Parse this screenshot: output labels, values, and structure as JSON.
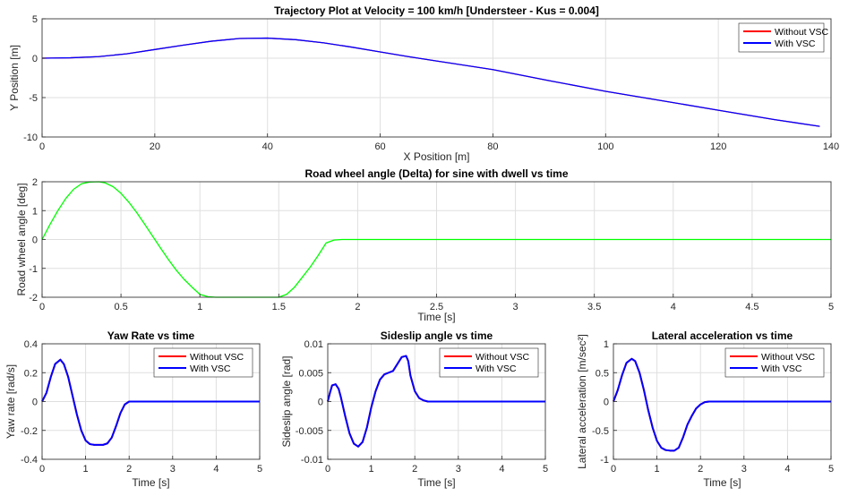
{
  "chart_data": [
    {
      "type": "line",
      "title": "Trajectory Plot at Velocity = 100 km/h [Understeer - Kus = 0.004]",
      "xlabel": "X Position [m]",
      "ylabel": "Y Position [m]",
      "xlim": [
        0,
        140
      ],
      "ylim": [
        -10,
        5
      ],
      "xticks": [
        0,
        20,
        40,
        60,
        80,
        100,
        120,
        140
      ],
      "yticks": [
        -10,
        -5,
        0,
        5
      ],
      "grid": true,
      "legend": "top-right",
      "series": [
        {
          "name": "Without VSC",
          "color": "#ff0000",
          "x": [
            0,
            5,
            10,
            15,
            20,
            25,
            30,
            35,
            40,
            45,
            50,
            55,
            60,
            65,
            70,
            80,
            90,
            100,
            110,
            120,
            130,
            138
          ],
          "y": [
            0,
            0.05,
            0.2,
            0.55,
            1.1,
            1.65,
            2.15,
            2.5,
            2.55,
            2.35,
            1.95,
            1.4,
            0.8,
            0.2,
            -0.35,
            -1.45,
            -2.85,
            -4.2,
            -5.4,
            -6.6,
            -7.8,
            -8.65
          ]
        },
        {
          "name": "With VSC",
          "color": "#0000ff",
          "x": [
            0,
            5,
            10,
            15,
            20,
            25,
            30,
            35,
            40,
            45,
            50,
            55,
            60,
            65,
            70,
            80,
            90,
            100,
            110,
            120,
            130,
            138
          ],
          "y": [
            0,
            0.05,
            0.2,
            0.55,
            1.1,
            1.65,
            2.15,
            2.5,
            2.55,
            2.35,
            1.95,
            1.4,
            0.8,
            0.2,
            -0.35,
            -1.45,
            -2.85,
            -4.2,
            -5.4,
            -6.6,
            -7.8,
            -8.65
          ]
        }
      ]
    },
    {
      "type": "line",
      "title": "Road wheel angle (Delta) for sine with dwell vs time",
      "xlabel": "Time [s]",
      "ylabel": "Road wheel angle [deg]",
      "xlim": [
        0,
        5
      ],
      "ylim": [
        -2,
        2
      ],
      "xticks": [
        0,
        0.5,
        1,
        1.5,
        2,
        2.5,
        3,
        3.5,
        4,
        4.5,
        5
      ],
      "yticks": [
        -2,
        -1,
        0,
        1,
        2
      ],
      "grid": true,
      "series": [
        {
          "color": "#00ff00",
          "x": [
            0,
            0.05,
            0.1,
            0.15,
            0.2,
            0.25,
            0.3,
            0.36,
            0.4,
            0.45,
            0.5,
            0.55,
            0.6,
            0.65,
            0.7,
            0.75,
            0.8,
            0.85,
            0.9,
            0.95,
            1.0,
            1.05,
            1.1,
            1.5,
            1.55,
            1.6,
            1.65,
            1.7,
            1.75,
            1.8,
            1.85,
            1.9,
            5
          ],
          "y": [
            0,
            0.52,
            1.0,
            1.42,
            1.74,
            1.93,
            1.99,
            2.0,
            1.96,
            1.83,
            1.6,
            1.29,
            0.93,
            0.53,
            0.12,
            -0.29,
            -0.69,
            -1.06,
            -1.38,
            -1.65,
            -1.9,
            -1.98,
            -2.0,
            -2.0,
            -1.9,
            -1.65,
            -1.3,
            -0.95,
            -0.55,
            -0.12,
            -0.02,
            0,
            0
          ]
        }
      ]
    },
    {
      "type": "line",
      "title": "Yaw Rate vs time",
      "xlabel": "Time [s]",
      "ylabel": "Yaw rate [rad/s]",
      "xlim": [
        0,
        5
      ],
      "ylim": [
        -0.4,
        0.4
      ],
      "xticks": [
        0,
        1,
        2,
        3,
        4,
        5
      ],
      "yticks": [
        -0.4,
        -0.2,
        0,
        0.2,
        0.4
      ],
      "grid": true,
      "legend": "top-right",
      "series": [
        {
          "name": "Without VSC",
          "color": "#ff0000",
          "x": [
            0,
            0.1,
            0.2,
            0.3,
            0.42,
            0.5,
            0.6,
            0.7,
            0.8,
            0.9,
            1.0,
            1.1,
            1.2,
            1.4,
            1.5,
            1.6,
            1.7,
            1.8,
            1.9,
            2.0,
            2.1,
            2.5,
            5
          ],
          "y": [
            0,
            0.06,
            0.17,
            0.26,
            0.29,
            0.26,
            0.17,
            0.04,
            -0.09,
            -0.2,
            -0.27,
            -0.295,
            -0.3,
            -0.3,
            -0.29,
            -0.25,
            -0.17,
            -0.08,
            -0.02,
            0,
            0,
            0,
            0
          ]
        },
        {
          "name": "With VSC",
          "color": "#0000ff",
          "x": [
            0,
            0.1,
            0.2,
            0.3,
            0.42,
            0.5,
            0.6,
            0.7,
            0.8,
            0.9,
            1.0,
            1.1,
            1.2,
            1.4,
            1.5,
            1.6,
            1.7,
            1.8,
            1.9,
            2.0,
            2.1,
            2.5,
            5
          ],
          "y": [
            0,
            0.06,
            0.17,
            0.26,
            0.29,
            0.26,
            0.17,
            0.04,
            -0.09,
            -0.2,
            -0.27,
            -0.295,
            -0.3,
            -0.3,
            -0.29,
            -0.25,
            -0.17,
            -0.08,
            -0.02,
            0,
            0,
            0,
            0
          ]
        }
      ]
    },
    {
      "type": "line",
      "title": "Sideslip angle vs time",
      "xlabel": "Time [s]",
      "ylabel": "Sideslip angle [rad]",
      "xlim": [
        0,
        5
      ],
      "ylim": [
        -0.01,
        0.01
      ],
      "xticks": [
        0,
        1,
        2,
        3,
        4,
        5
      ],
      "yticks": [
        -0.01,
        -0.005,
        0,
        0.005,
        0.01
      ],
      "ytickLabels": [
        "-0.01",
        "-0.005",
        "0",
        "0.005",
        "0.01"
      ],
      "grid": true,
      "legend": "top-right",
      "series": [
        {
          "name": "Without VSC",
          "color": "#ff0000",
          "x": [
            0,
            0.05,
            0.1,
            0.18,
            0.25,
            0.3,
            0.4,
            0.5,
            0.6,
            0.7,
            0.8,
            0.9,
            1.0,
            1.1,
            1.2,
            1.3,
            1.4,
            1.5,
            1.6,
            1.7,
            1.8,
            1.85,
            1.9,
            2.0,
            2.1,
            2.2,
            2.3,
            2.5,
            5
          ],
          "y": [
            0,
            0.0015,
            0.0028,
            0.003,
            0.0022,
            0.0008,
            -0.0025,
            -0.0055,
            -0.0073,
            -0.0078,
            -0.007,
            -0.0045,
            -0.001,
            0.0018,
            0.0038,
            0.0047,
            0.005,
            0.0053,
            0.0065,
            0.0077,
            0.0079,
            0.007,
            0.0045,
            0.0018,
            0.0006,
            0.0002,
            0,
            0,
            0
          ]
        },
        {
          "name": "With VSC",
          "color": "#0000ff",
          "x": [
            0,
            0.05,
            0.1,
            0.18,
            0.25,
            0.3,
            0.4,
            0.5,
            0.6,
            0.7,
            0.8,
            0.9,
            1.0,
            1.1,
            1.2,
            1.3,
            1.4,
            1.5,
            1.6,
            1.7,
            1.8,
            1.85,
            1.9,
            2.0,
            2.1,
            2.2,
            2.3,
            2.5,
            5
          ],
          "y": [
            0,
            0.0015,
            0.0028,
            0.003,
            0.0022,
            0.0008,
            -0.0025,
            -0.0055,
            -0.0073,
            -0.0078,
            -0.007,
            -0.0045,
            -0.001,
            0.0018,
            0.0038,
            0.0047,
            0.005,
            0.0053,
            0.0065,
            0.0077,
            0.0079,
            0.007,
            0.0045,
            0.0018,
            0.0006,
            0.0002,
            0,
            0,
            0
          ]
        }
      ]
    },
    {
      "type": "line",
      "title": "Lateral acceleration vs time",
      "xlabel": "Time [s]",
      "ylabel": "Lateral acceleration [m/sec²]",
      "xlim": [
        0,
        5
      ],
      "ylim": [
        -1,
        1
      ],
      "xticks": [
        0,
        1,
        2,
        3,
        4,
        5
      ],
      "yticks": [
        -1,
        -0.5,
        0,
        0.5,
        1
      ],
      "grid": true,
      "legend": "top-right",
      "series": [
        {
          "name": "Without VSC",
          "color": "#ff0000",
          "x": [
            0,
            0.1,
            0.2,
            0.3,
            0.42,
            0.5,
            0.6,
            0.7,
            0.8,
            0.9,
            1.0,
            1.1,
            1.2,
            1.3,
            1.4,
            1.5,
            1.6,
            1.7,
            1.8,
            1.9,
            2.0,
            2.1,
            2.2,
            2.5,
            5
          ],
          "y": [
            0,
            0.2,
            0.46,
            0.67,
            0.74,
            0.7,
            0.5,
            0.2,
            -0.15,
            -0.45,
            -0.68,
            -0.8,
            -0.84,
            -0.85,
            -0.85,
            -0.8,
            -0.62,
            -0.4,
            -0.25,
            -0.12,
            -0.05,
            -0.01,
            0,
            0,
            0
          ]
        },
        {
          "name": "With VSC",
          "color": "#0000ff",
          "x": [
            0,
            0.1,
            0.2,
            0.3,
            0.42,
            0.5,
            0.6,
            0.7,
            0.8,
            0.9,
            1.0,
            1.1,
            1.2,
            1.3,
            1.4,
            1.5,
            1.6,
            1.7,
            1.8,
            1.9,
            2.0,
            2.1,
            2.2,
            2.5,
            5
          ],
          "y": [
            0,
            0.2,
            0.46,
            0.67,
            0.74,
            0.7,
            0.5,
            0.2,
            -0.15,
            -0.45,
            -0.68,
            -0.8,
            -0.84,
            -0.85,
            -0.85,
            -0.8,
            -0.62,
            -0.4,
            -0.25,
            -0.12,
            -0.05,
            -0.01,
            0,
            0,
            0
          ]
        }
      ]
    }
  ]
}
